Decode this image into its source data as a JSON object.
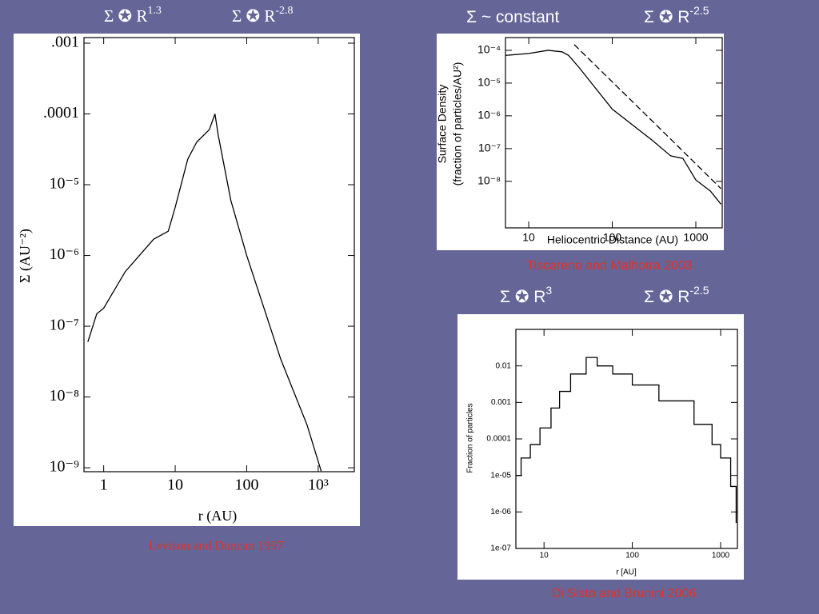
{
  "chart_data": [
    {
      "type": "line",
      "xscale": "log",
      "yscale": "log",
      "annotations": [
        {
          "text": "Σ ✪ R",
          "sup": "1.3"
        },
        {
          "text": "Σ ✪ R",
          "sup": "-2.8"
        }
      ],
      "xlabel": "r (AU)",
      "ylabel": [
        "Σ  (AU⁻²)"
      ],
      "x": [
        0.6,
        0.8,
        1.0,
        2,
        5,
        8,
        10,
        15,
        20,
        30,
        36,
        40,
        60,
        100,
        300,
        700,
        1100
      ],
      "series": [
        {
          "color": "#000000",
          "dash": false,
          "values": [
            6e-08,
            1.5e-07,
            1.8e-07,
            5.9e-07,
            1.7e-06,
            2.2e-06,
            4.8e-06,
            2.3e-05,
            4e-05,
            6e-05,
            0.0001,
            5e-05,
            6e-06,
            1e-06,
            3.4e-08,
            4e-09,
            9e-10
          ]
        }
      ],
      "xlim": [
        0.53,
        3200
      ],
      "ylim": [
        8.8e-10,
        0.0012
      ],
      "xticks": [
        1,
        10,
        100,
        {
          "value": 1000,
          "label": "10³"
        }
      ],
      "yticks": [
        {
          "value": 0.001,
          "label": ".001"
        },
        {
          "value": 0.0001,
          "label": ".0001"
        },
        {
          "value": 1e-05,
          "label": "10⁻⁵"
        },
        {
          "value": 1e-06,
          "label": "10⁻⁶"
        },
        {
          "value": 1e-07,
          "label": "10⁻⁷"
        },
        {
          "value": 1e-08,
          "label": "10⁻⁸"
        },
        {
          "value": 1e-09,
          "label": "10⁻⁹"
        }
      ],
      "caption": "Levison and Duncan 1997"
    },
    {
      "type": "line",
      "xscale": "log",
      "yscale": "log",
      "annotations": [
        {
          "text": "Σ ~ constant"
        },
        {
          "text": "Σ ✪ R",
          "sup": "-2.5"
        }
      ],
      "xlabel": "Heliocentric Distance (AU)",
      "ylabel": [
        "Surface Density",
        "(fraction of particles/AU²)"
      ],
      "x": [
        5.3,
        10,
        17,
        25,
        30,
        40,
        100,
        300,
        500,
        700,
        1000,
        1500,
        2000
      ],
      "series": [
        {
          "color": "#000000",
          "dash": false,
          "values": [
            7e-05,
            8e-05,
            0.0001,
            9e-05,
            7e-05,
            3e-05,
            1.6e-06,
            1.8e-07,
            6e-08,
            5e-08,
            1.1e-08,
            5e-09,
            2e-09
          ]
        },
        {
          "color": "#000000",
          "dash": true,
          "x": [
            35,
            300,
            2000
          ],
          "values": [
            0.00015,
            7e-07,
            6e-09
          ]
        }
      ],
      "xlim": [
        5.27,
        2070
      ],
      "ylim": [
        3.8e-10,
        0.000245
      ],
      "xticks": [
        10,
        100,
        1000
      ],
      "yticks": [
        {
          "value": 0.0001,
          "label": "10⁻⁴"
        },
        {
          "value": 1e-05,
          "label": "10⁻⁵"
        },
        {
          "value": 1e-06,
          "label": "10⁻⁶"
        },
        {
          "value": 1e-07,
          "label": "10⁻⁷"
        },
        {
          "value": 1e-08,
          "label": "10⁻⁸"
        }
      ],
      "caption": "Tiscareno and Malhotra 2003"
    },
    {
      "type": "line",
      "xscale": "log",
      "yscale": "log",
      "step": true,
      "annotations": [
        {
          "text": "Σ ✪ R",
          "sup": "3"
        },
        {
          "text": "Σ ✪ R",
          "sup": "-2.5"
        }
      ],
      "xlabel": "r [AU]",
      "ylabel": [
        "Fraction of particles"
      ],
      "x": [
        4.8,
        5,
        5.5,
        7,
        9,
        12,
        15,
        20,
        30,
        40,
        60,
        100,
        200,
        500,
        800,
        1000,
        1300,
        1500
      ],
      "series": [
        {
          "color": "#000000",
          "dash": false,
          "values": [
            1e-05,
            1e-05,
            3e-05,
            7e-05,
            0.0002,
            0.0007,
            0.002,
            0.006,
            0.017,
            0.01,
            0.006,
            0.003,
            0.0011,
            0.00025,
            7e-05,
            3e-05,
            5e-06,
            5e-07
          ]
        }
      ],
      "xlim": [
        4.8,
        1550
      ],
      "ylim": [
        1e-07,
        0.1
      ],
      "xticks": [
        10,
        100,
        1000
      ],
      "yticks": [
        0.01,
        0.001,
        0.0001,
        {
          "value": 1e-05,
          "label": "1e-05"
        },
        {
          "value": 1e-06,
          "label": "1e-06"
        },
        {
          "value": 1e-07,
          "label": "1e-07"
        }
      ],
      "caption": "Di Sisto and Brunini 2006"
    }
  ]
}
